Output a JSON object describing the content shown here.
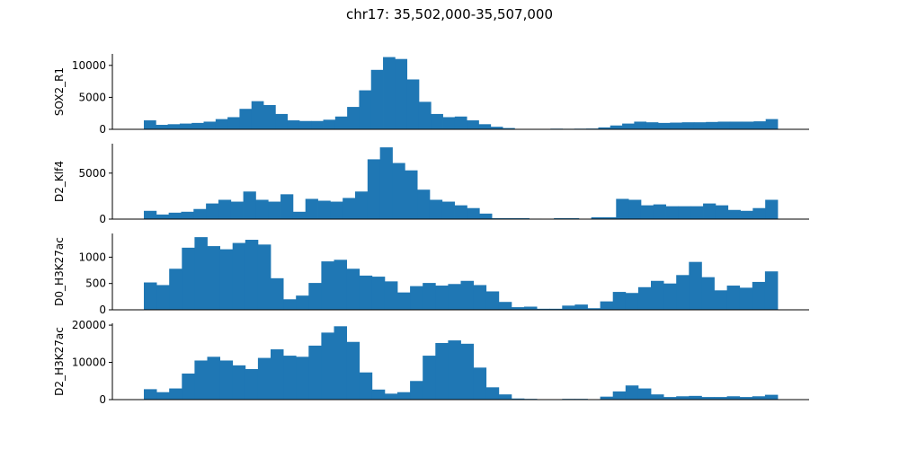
{
  "title": "chr17: 35,502,000-35,507,000",
  "colors": {
    "bar": "#1f77b4",
    "axis": "#000000"
  },
  "chart_data": [
    {
      "type": "bar",
      "ylabel": "SOX2_R1",
      "ylim": [
        0,
        11800
      ],
      "yticks": [
        0,
        5000,
        10000
      ],
      "ytick_labels": [
        "0",
        "5000",
        "10000"
      ],
      "grid": false,
      "values": [
        1400,
        700,
        800,
        900,
        1000,
        1200,
        1600,
        1900,
        3200,
        4400,
        3800,
        2400,
        1400,
        1300,
        1300,
        1500,
        2000,
        3500,
        6100,
        9300,
        11300,
        11000,
        7800,
        4300,
        2400,
        1900,
        2000,
        1400,
        800,
        400,
        200,
        50,
        0,
        50,
        100,
        80,
        100,
        120,
        300,
        600,
        900,
        1200,
        1100,
        1000,
        1050,
        1100,
        1100,
        1150,
        1200,
        1200,
        1200,
        1250,
        1600
      ]
    },
    {
      "type": "bar",
      "ylabel": "D2_Klf4",
      "ylim": [
        0,
        8200
      ],
      "yticks": [
        0,
        5000
      ],
      "ytick_labels": [
        "0",
        "5000"
      ],
      "grid": false,
      "values": [
        900,
        500,
        700,
        800,
        1100,
        1700,
        2100,
        1900,
        3000,
        2100,
        1900,
        2700,
        800,
        2200,
        2000,
        1900,
        2300,
        3000,
        6500,
        7800,
        6100,
        5300,
        3200,
        2100,
        1900,
        1500,
        1200,
        600,
        100,
        100,
        100,
        50,
        0,
        100,
        100,
        0,
        200,
        200,
        2200,
        2100,
        1500,
        1600,
        1400,
        1400,
        1400,
        1700,
        1500,
        1000,
        900,
        1200,
        2100
      ]
    },
    {
      "type": "bar",
      "ylabel": "D0_H3K27ac",
      "ylim": [
        0,
        1450
      ],
      "yticks": [
        0,
        500,
        1000
      ],
      "ytick_labels": [
        "0",
        "500",
        "1000"
      ],
      "grid": false,
      "values": [
        520,
        470,
        780,
        1180,
        1380,
        1210,
        1150,
        1270,
        1330,
        1240,
        600,
        200,
        270,
        510,
        920,
        950,
        780,
        650,
        630,
        540,
        330,
        450,
        510,
        460,
        490,
        550,
        470,
        350,
        150,
        50,
        60,
        20,
        20,
        80,
        100,
        30,
        160,
        340,
        320,
        430,
        550,
        500,
        660,
        910,
        620,
        370,
        460,
        420,
        530,
        730
      ]
    },
    {
      "type": "bar",
      "ylabel": "D2_H3K27ac",
      "ylim": [
        0,
        20500
      ],
      "yticks": [
        0,
        10000,
        20000
      ],
      "ytick_labels": [
        "0",
        "10000",
        "20000"
      ],
      "grid": false,
      "values": [
        2800,
        2000,
        3000,
        7000,
        10500,
        11500,
        10500,
        9200,
        8200,
        11200,
        13500,
        11800,
        11500,
        14500,
        18000,
        19700,
        15500,
        7300,
        2700,
        1600,
        2000,
        5000,
        11800,
        15200,
        15900,
        15000,
        8600,
        3300,
        1400,
        300,
        200,
        100,
        0,
        200,
        200,
        100,
        800,
        2200,
        3800,
        3000,
        1400,
        700,
        900,
        1000,
        700,
        700,
        900,
        700,
        900,
        1300
      ]
    }
  ]
}
